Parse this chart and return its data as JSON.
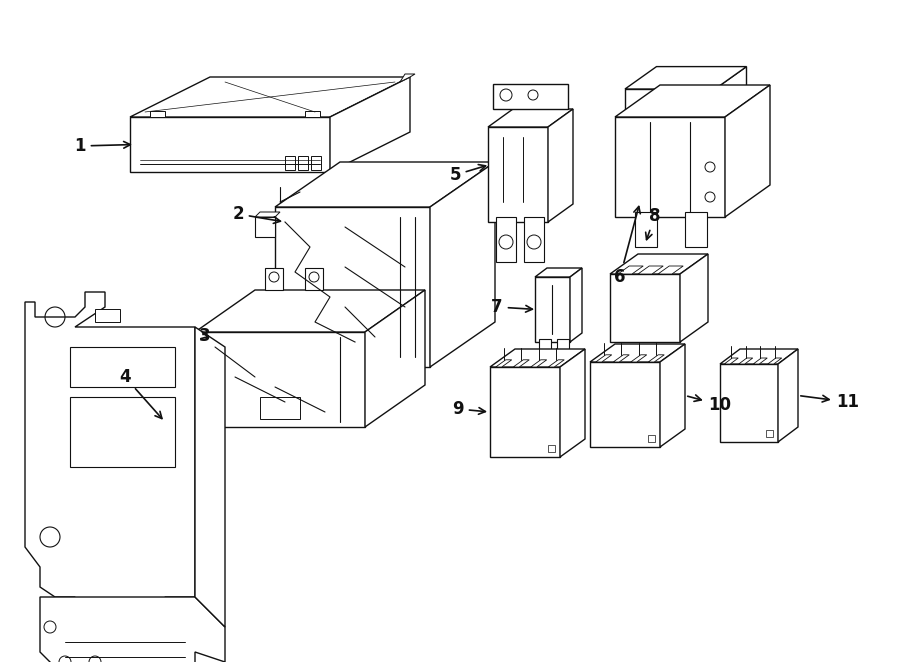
{
  "bg_color": "#ffffff",
  "line_color": "#111111",
  "lw": 1.0,
  "fig_width": 9.0,
  "fig_height": 6.62,
  "dpi": 100
}
